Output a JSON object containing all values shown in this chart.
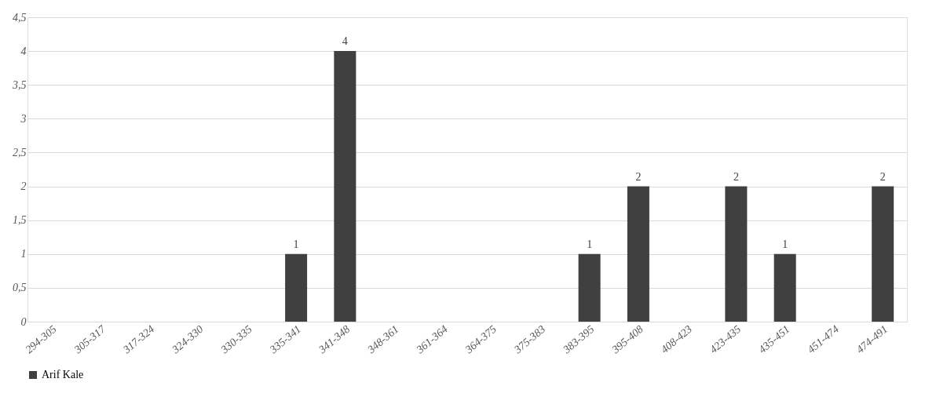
{
  "chart_data": {
    "type": "bar",
    "categories": [
      "294-305",
      "305-317",
      "317-324",
      "324-330",
      "330-335",
      "335-341",
      "341-348",
      "348-361",
      "361-364",
      "364-375",
      "375-383",
      "383-395",
      "395-408",
      "408-423",
      "423-435",
      "435-451",
      "451-474",
      "474-491"
    ],
    "series": [
      {
        "name": "Arif Kale",
        "color": "#404040",
        "values": [
          0,
          0,
          0,
          0,
          0,
          1,
          4,
          0,
          0,
          0,
          0,
          1,
          2,
          0,
          2,
          1,
          0,
          2
        ],
        "value_labels": [
          null,
          null,
          null,
          null,
          null,
          "1",
          "4",
          null,
          null,
          null,
          null,
          "1",
          "2",
          null,
          "2",
          "1",
          null,
          "2"
        ]
      }
    ],
    "ylim": [
      0,
      4.5
    ],
    "yticks": [
      0,
      {
        "value": 0.5,
        "label": "0,5"
      },
      1,
      {
        "value": 1.5,
        "label": "1,5"
      },
      2,
      {
        "value": 2.5,
        "label": "2,5"
      },
      3,
      {
        "value": 3.5,
        "label": "3,5"
      },
      4,
      {
        "value": 4.5,
        "label": "4,5"
      }
    ],
    "grid": "y",
    "legend": "bottom"
  }
}
